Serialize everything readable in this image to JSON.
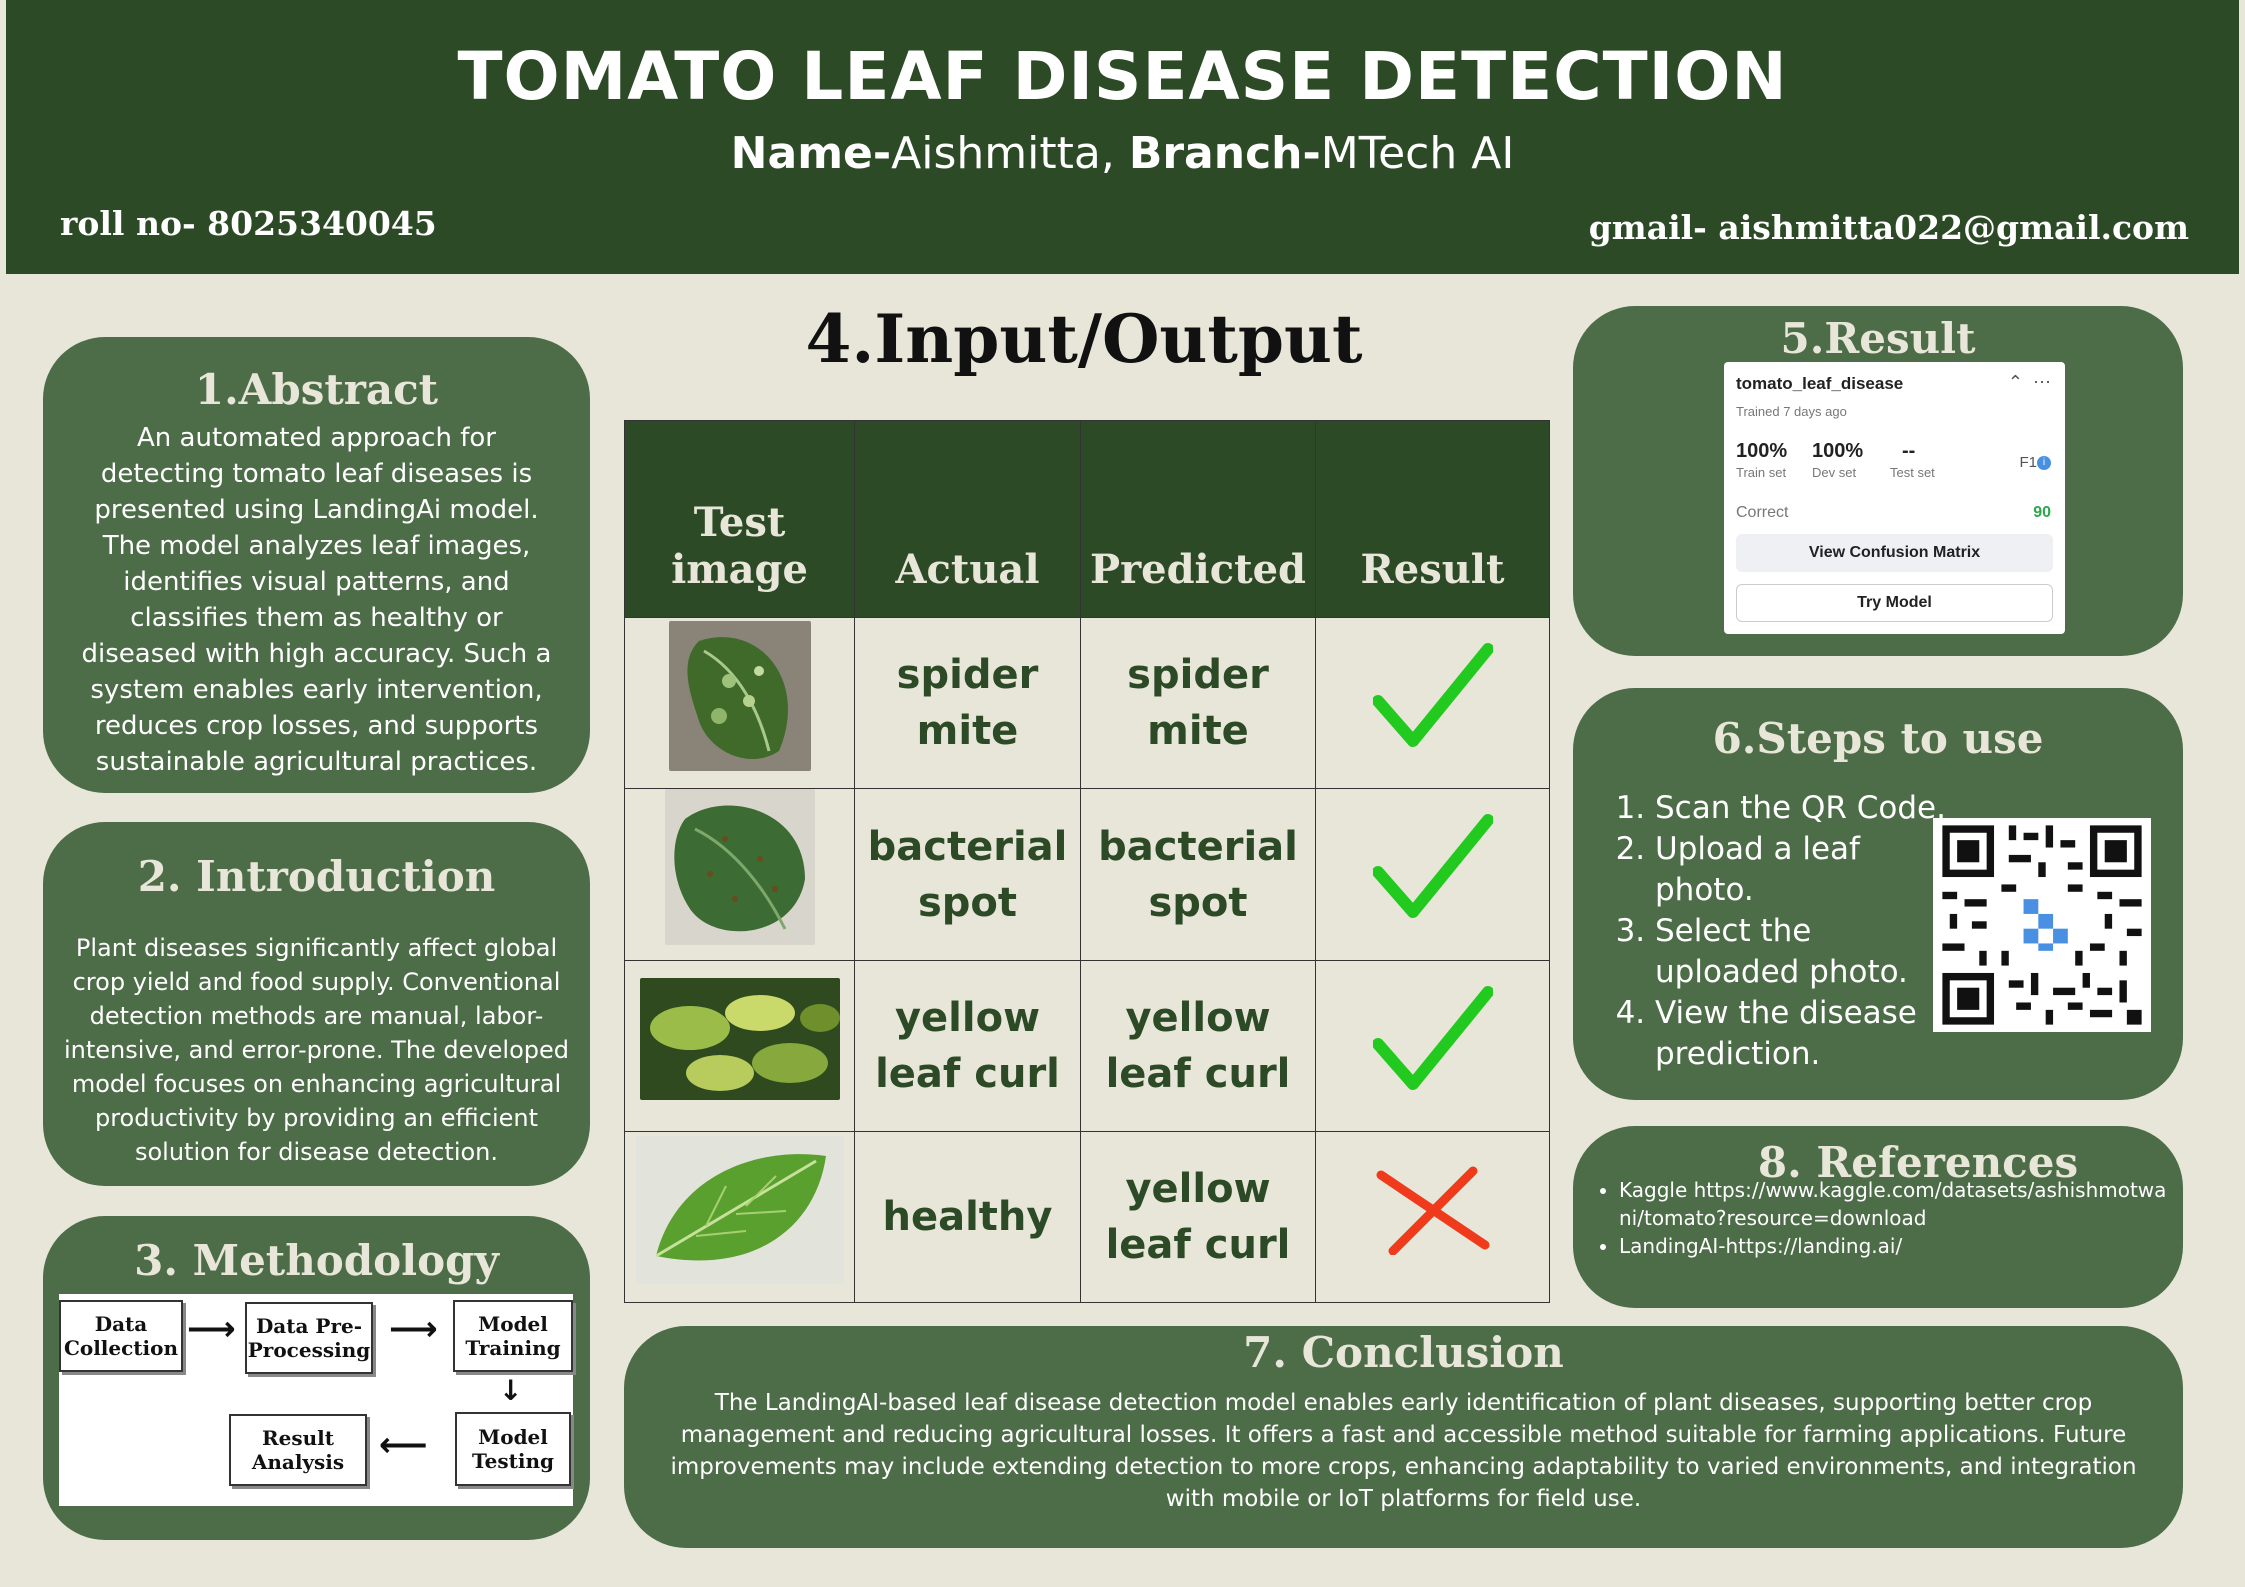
{
  "header": {
    "title": "TOMATO LEAF DISEASE DETECTION",
    "name_label": "Name-",
    "name_value": "Aishmitta, ",
    "branch_label": "Branch-",
    "branch_value": "MTech AI",
    "roll": "roll no- 8025340045",
    "gmail": "gmail- aishmitta022@gmail.com"
  },
  "abstract": {
    "title": "1.Abstract",
    "text": "An automated approach for detecting tomato leaf diseases is presented using LandingAi model. The model analyzes leaf images, identifies visual patterns, and classifies them as healthy or diseased with high accuracy. Such a system enables early intervention, reduces crop losses, and supports sustainable agricultural practices."
  },
  "introduction": {
    "title": "2. Introduction",
    "text": "Plant diseases significantly affect global crop yield and food supply. Conventional detection methods are manual, labor-intensive, and error-prone.  The developed model focuses on enhancing agricultural productivity by providing an efficient solution for disease detection."
  },
  "methodology": {
    "title": "3. Methodology",
    "steps": [
      "Data Collection",
      "Data Pre-Processing",
      "Model Training",
      "Model Testing",
      "Result Analysis"
    ]
  },
  "io": {
    "title": "4.Input/Output",
    "headers": [
      "Test image",
      "Actual",
      "Predicted",
      "Result"
    ],
    "rows": [
      {
        "actual": "spider mite",
        "predicted": "spider mite",
        "result": "correct"
      },
      {
        "actual": "bacterial spot",
        "predicted": "bacterial spot",
        "result": "correct"
      },
      {
        "actual": "yellow leaf curl",
        "predicted": "yellow leaf curl",
        "result": "correct"
      },
      {
        "actual": "healthy",
        "predicted": "yellow leaf curl",
        "result": "wrong"
      }
    ]
  },
  "result": {
    "title": "5.Result",
    "model_name": "tomato_leaf_disease",
    "trained": "Trained 7 days ago",
    "train_value": "100%",
    "train_label": "Train set",
    "dev_value": "100%",
    "dev_label": "Dev set",
    "test_value": "--",
    "test_label": "Test set",
    "f1_label": "F1",
    "correct_label": "Correct",
    "correct_value": "90",
    "confusion_button": "View Confusion Matrix",
    "try_button": "Try Model"
  },
  "steps": {
    "title": "6.Steps to use",
    "items": [
      "Scan the QR Code.",
      "Upload a leaf photo.",
      "Select the uploaded photo.",
      "View the disease prediction."
    ]
  },
  "references": {
    "title": "8. References",
    "items": [
      "Kaggle https://www.kaggle.com/datasets/ashishmotwani/tomato?resource=download",
      "LandingAI-https://landing.ai/"
    ]
  },
  "conclusion": {
    "title": "7. Conclusion",
    "text": "The LandingAI-based leaf disease detection model enables early identification of plant diseases, supporting better crop management and reducing agricultural losses. It offers a fast and accessible method suitable for farming applications. Future improvements may include extending detection to more crops, enhancing adaptability to varied environments, and integration with mobile or IoT platforms for field use."
  }
}
